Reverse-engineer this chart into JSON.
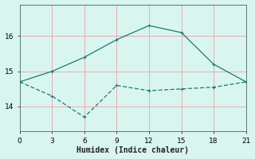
{
  "line1_x": [
    0,
    3,
    6,
    9,
    12,
    15,
    18,
    21
  ],
  "line1_y": [
    14.7,
    15.0,
    15.4,
    15.9,
    16.3,
    16.1,
    15.2,
    14.7
  ],
  "line2_x": [
    0,
    3,
    6,
    9,
    12,
    15,
    18,
    21
  ],
  "line2_y": [
    14.7,
    14.3,
    13.7,
    14.6,
    14.45,
    14.5,
    14.55,
    14.7
  ],
  "line_color": "#1a7a6e",
  "bg_color": "#d9f5f0",
  "grid_color": "#f0a0a0",
  "xlabel": "Humidex (Indice chaleur)",
  "xlim": [
    0,
    21
  ],
  "ylim": [
    13.3,
    16.9
  ],
  "yticks": [
    14,
    15,
    16
  ],
  "xticks": [
    0,
    3,
    6,
    9,
    12,
    15,
    18,
    21
  ],
  "xlabel_fontsize": 7,
  "tick_fontsize": 6.5
}
